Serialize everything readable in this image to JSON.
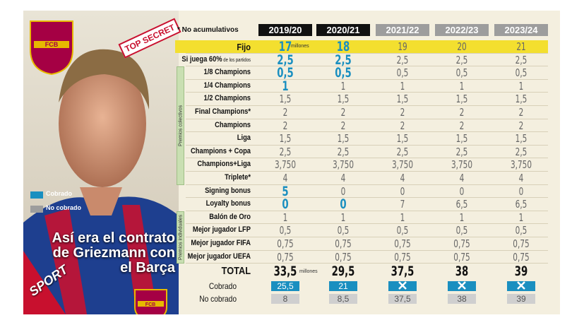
{
  "title": "Así era el contrato de Griezmann con el Barça",
  "stamp": "TOP SECRET",
  "brand": "SPORT",
  "crest": "FCB",
  "legend": [
    "Cobrado",
    "No cobrado"
  ],
  "header": {
    "note": "* No acumulativos",
    "seasons": [
      "2019/20",
      "2020/21",
      "2021/22",
      "2022/23",
      "2023/24"
    ]
  },
  "groups": [
    "Premios colectivos",
    "Premios individuales"
  ],
  "rows": [
    {
      "label": "Fijo",
      "values": [
        "17",
        "18",
        "19",
        "20",
        "21"
      ],
      "unit": "millones"
    },
    {
      "label": "Si juega 60%",
      "label_small": "de los partidos",
      "values": [
        "2,5",
        "2,5",
        "2,5",
        "2,5",
        "2,5"
      ]
    },
    {
      "label": "1/8 Champions",
      "values": [
        "0,5",
        "0,5",
        "0,5",
        "0,5",
        "0,5"
      ]
    },
    {
      "label": "1/4 Champions",
      "values": [
        "1",
        "1",
        "1",
        "1",
        "1"
      ]
    },
    {
      "label": "1/2 Champions",
      "values": [
        "1,5",
        "1,5",
        "1,5",
        "1,5",
        "1,5"
      ]
    },
    {
      "label": "Final Champions*",
      "values": [
        "2",
        "2",
        "2",
        "2",
        "2"
      ]
    },
    {
      "label": "Champions",
      "values": [
        "2",
        "2",
        "2",
        "2",
        "2"
      ]
    },
    {
      "label": "Liga",
      "values": [
        "1,5",
        "1,5",
        "1,5",
        "1,5",
        "1,5"
      ]
    },
    {
      "label": "Champions + Copa",
      "values": [
        "2,5",
        "2,5",
        "2,5",
        "2,5",
        "2,5"
      ]
    },
    {
      "label": "Champions+Liga",
      "values": [
        "3,750",
        "3,750",
        "3,750",
        "3,750",
        "3,750"
      ]
    },
    {
      "label": "Triplete*",
      "values": [
        "4",
        "4",
        "4",
        "4",
        "4"
      ]
    },
    {
      "label": "Signing bonus",
      "values": [
        "5",
        "0",
        "0",
        "0",
        "0"
      ]
    },
    {
      "label": "Loyalty bonus",
      "values": [
        "0",
        "0",
        "7",
        "6,5",
        "6,5"
      ]
    },
    {
      "label": "Balón de Oro",
      "values": [
        "1",
        "1",
        "1",
        "1",
        "1"
      ]
    },
    {
      "label": "Mejor jugador LFP",
      "values": [
        "0,5",
        "0,5",
        "0,5",
        "0,5",
        "0,5"
      ]
    },
    {
      "label": "Mejor jugador FIFA",
      "values": [
        "0,75",
        "0,75",
        "0,75",
        "0,75",
        "0,75"
      ]
    },
    {
      "label": "Mejor jugador UEFA",
      "values": [
        "0,75",
        "0,75",
        "0,75",
        "0,75",
        "0,75"
      ]
    }
  ],
  "total": {
    "label": "TOTAL",
    "values": [
      "33,5",
      "29,5",
      "37,5",
      "38",
      "39"
    ],
    "unit": "millones"
  },
  "cobrado": {
    "label": "Cobrado",
    "values": [
      "25,5",
      "21"
    ]
  },
  "no_cobrado": {
    "label": "No cobrado",
    "values": [
      "8",
      "8,5",
      "37,5",
      "38",
      "39"
    ]
  }
}
